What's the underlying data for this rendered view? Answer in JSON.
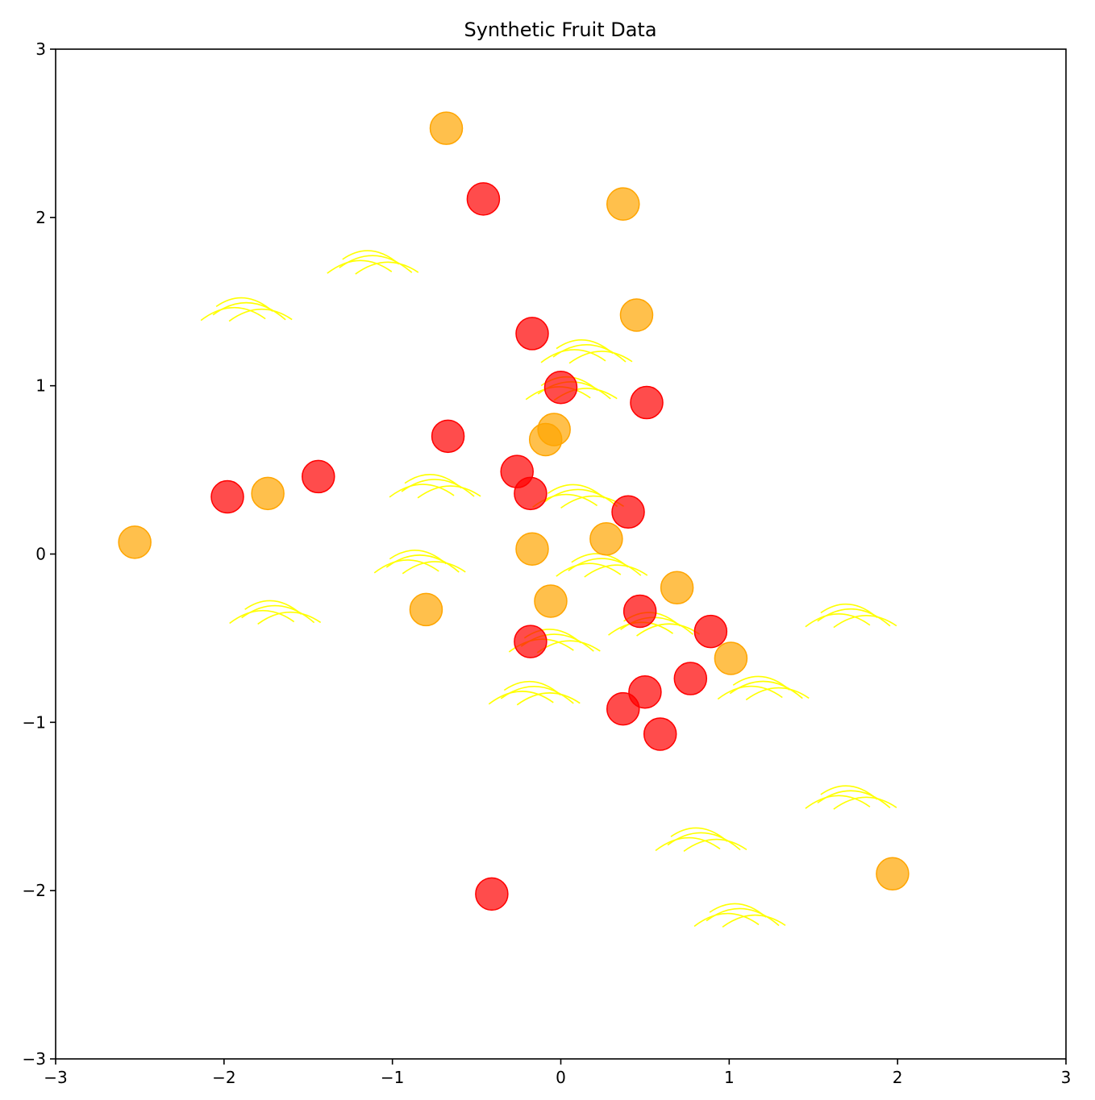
{
  "chart_data": {
    "type": "scatter",
    "title": "Synthetic Fruit Data",
    "xlabel": "",
    "ylabel": "",
    "xlim": [
      -3,
      3
    ],
    "ylim": [
      -3,
      3
    ],
    "grid": false,
    "x_ticks": [
      -3,
      -2,
      -1,
      0,
      1,
      2,
      3
    ],
    "y_ticks": [
      -3,
      -2,
      -1,
      0,
      1,
      2,
      3
    ],
    "x_tick_labels": [
      "−3",
      "−2",
      "−1",
      "0",
      "1",
      "2",
      "3"
    ],
    "y_tick_labels": [
      "−3",
      "−2",
      "−1",
      "0",
      "1",
      "2",
      "3"
    ],
    "colors": {
      "red": "#ff0000",
      "orange": "#ffa500",
      "yellow": "#ffff00"
    },
    "series": [
      {
        "marker": "circle",
        "color": "#ff0000",
        "points": [
          [
            -0.46,
            2.11
          ],
          [
            -0.17,
            1.31
          ],
          [
            0.0,
            0.99
          ],
          [
            0.51,
            0.9
          ],
          [
            -0.67,
            0.7
          ],
          [
            -0.26,
            0.49
          ],
          [
            -1.44,
            0.46
          ],
          [
            -1.98,
            0.34
          ],
          [
            -0.18,
            0.36
          ],
          [
            0.4,
            0.25
          ],
          [
            0.47,
            -0.34
          ],
          [
            -0.18,
            -0.52
          ],
          [
            0.89,
            -0.46
          ],
          [
            0.77,
            -0.74
          ],
          [
            0.5,
            -0.82
          ],
          [
            0.37,
            -0.92
          ],
          [
            0.59,
            -1.07
          ],
          [
            -0.41,
            -2.02
          ]
        ]
      },
      {
        "marker": "circle",
        "color": "#ffa500",
        "points": [
          [
            -0.68,
            2.53
          ],
          [
            0.37,
            2.08
          ],
          [
            0.45,
            1.42
          ],
          [
            -0.04,
            0.74
          ],
          [
            -0.09,
            0.68
          ],
          [
            -1.74,
            0.36
          ],
          [
            -2.53,
            0.07
          ],
          [
            -0.17,
            0.03
          ],
          [
            0.27,
            0.09
          ],
          [
            0.69,
            -0.2
          ],
          [
            -0.06,
            -0.28
          ],
          [
            -0.8,
            -0.33
          ],
          [
            1.01,
            -0.62
          ],
          [
            1.97,
            -1.9
          ]
        ]
      },
      {
        "marker": "banana",
        "color": "#ffff00",
        "points": [
          [
            -1.1,
            1.78
          ],
          [
            -1.85,
            1.5
          ],
          [
            0.17,
            1.25
          ],
          [
            0.08,
            1.03
          ],
          [
            -0.73,
            0.45
          ],
          [
            0.12,
            0.39
          ],
          [
            -0.82,
            0.0
          ],
          [
            0.26,
            -0.02
          ],
          [
            -1.68,
            -0.3
          ],
          [
            0.57,
            -0.37
          ],
          [
            1.74,
            -0.32
          ],
          [
            -0.02,
            -0.47
          ],
          [
            -0.14,
            -0.78
          ],
          [
            1.22,
            -0.75
          ],
          [
            1.74,
            -1.4
          ],
          [
            0.85,
            -1.65
          ],
          [
            1.08,
            -2.1
          ]
        ]
      }
    ]
  }
}
